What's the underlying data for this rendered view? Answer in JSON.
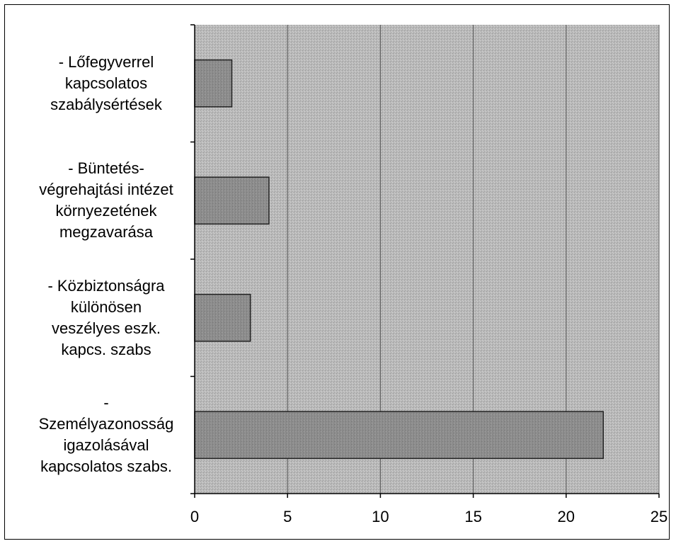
{
  "chart_data": {
    "type": "bar",
    "orientation": "horizontal",
    "categories": [
      "- Lőfegyverrel\nkapcsolatos\nszabálysértések",
      "- Büntetés-\nvégrehajtási intézet\nkörnyezetének\nmegzavarása",
      "- Közbiztonságra\nkülönösen\nveszélyes eszk.\nkapcs. szabs",
      "-\nSzemélyazonosság\nigazolásával\nkapcsolatos szabs."
    ],
    "values": [
      2,
      4,
      3,
      22
    ],
    "xlim": [
      0,
      25
    ],
    "xticks": [
      "0",
      "5",
      "10",
      "15",
      "20",
      "25"
    ],
    "grid": true,
    "legend": "none",
    "colors": {
      "plot_bg": "#b8b8b8",
      "bar_fill": "#8c8c8c",
      "bar_stroke": "#222222",
      "grid": "#555555",
      "axis": "#000000"
    }
  }
}
